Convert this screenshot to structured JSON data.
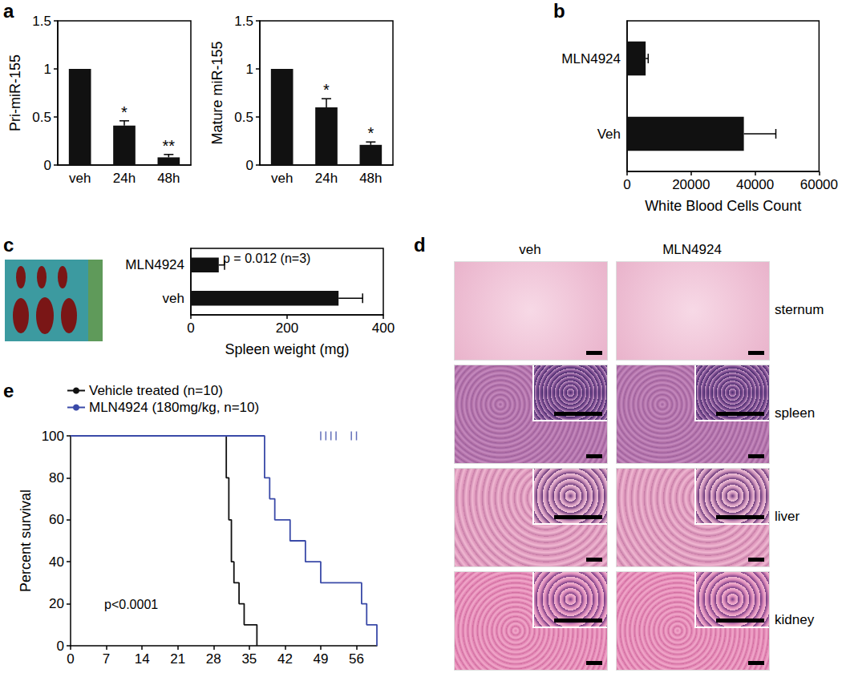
{
  "chart_data": [
    {
      "type": "bar",
      "panel": "a",
      "ylabel": "Pri-miR-155",
      "categories": [
        "veh",
        "24h",
        "48h"
      ],
      "values": [
        1,
        0.41,
        0.08
      ],
      "errors": [
        0,
        0.05,
        0.03
      ],
      "significance": [
        null,
        "*",
        "**"
      ],
      "color": "#111111",
      "ylim": [
        0,
        1.5
      ],
      "yticks": [
        0,
        0.5,
        1,
        1.5
      ],
      "grid": false
    },
    {
      "type": "bar",
      "ylabel": "Mature miR-155",
      "categories": [
        "veh",
        "24h",
        "48h"
      ],
      "values": [
        1,
        0.6,
        0.21
      ],
      "errors": [
        0,
        0.09,
        0.03
      ],
      "significance": [
        null,
        "*",
        "*"
      ],
      "color": "#111111",
      "ylim": [
        0,
        1.5
      ],
      "yticks": [
        0,
        0.5,
        1,
        1.5
      ],
      "grid": false
    },
    {
      "type": "bar",
      "panel": "b",
      "orientation": "horizontal",
      "xlabel": "White Blood Cells Count",
      "categories": [
        "Veh",
        "MLN4924"
      ],
      "values": [
        36500,
        5800
      ],
      "errors": [
        10000,
        800
      ],
      "color": "#111111",
      "xlim": [
        0,
        60000
      ],
      "xticks": [
        0,
        20000,
        40000,
        60000
      ],
      "grid": false
    },
    {
      "type": "bar",
      "panel": "c",
      "orientation": "horizontal",
      "xlabel": "Spleen weight (mg)",
      "annotation": "p = 0.012 (n=3)",
      "categories": [
        "veh",
        "MLN4924"
      ],
      "values": [
        307,
        58
      ],
      "errors": [
        50,
        12
      ],
      "color": "#111111",
      "xlim": [
        0,
        400
      ],
      "xticks": [
        0,
        200,
        400
      ],
      "grid": false
    },
    {
      "type": "line",
      "panel": "e",
      "ylabel": "Percent survival",
      "annotation": "p<0.0001",
      "legend": "top-left",
      "grid": false,
      "xlim": [
        0,
        60
      ],
      "xticks": [
        0,
        7,
        14,
        21,
        28,
        35,
        42,
        49,
        56
      ],
      "ylim": [
        0,
        100
      ],
      "yticks": [
        0,
        20,
        40,
        60,
        80,
        100
      ],
      "series": [
        {
          "name": "Vehicle treated (n=10)",
          "color": "#111111",
          "x": [
            0,
            30.5,
            31,
            31.5,
            32,
            33,
            34,
            36.5
          ],
          "values": [
            100,
            80,
            60,
            40,
            30,
            20,
            10,
            0
          ]
        },
        {
          "name": "MLN4924 (180mg/kg, n=10)",
          "color": "#3a4aa8",
          "x": [
            0,
            38,
            39,
            40,
            43,
            46,
            49,
            57,
            58,
            60
          ],
          "values": [
            100,
            80,
            70,
            60,
            50,
            40,
            30,
            20,
            10,
            0
          ],
          "censored": [
            [
              49,
              100
            ],
            [
              50,
              100
            ],
            [
              51,
              100
            ],
            [
              52,
              100
            ],
            [
              55,
              100
            ],
            [
              56,
              100
            ]
          ]
        }
      ]
    }
  ],
  "panel_d": {
    "panel": "d",
    "columns": [
      "veh",
      "MLN4924"
    ],
    "rows": [
      "sternum",
      "spleen",
      "liver",
      "kidney"
    ]
  }
}
